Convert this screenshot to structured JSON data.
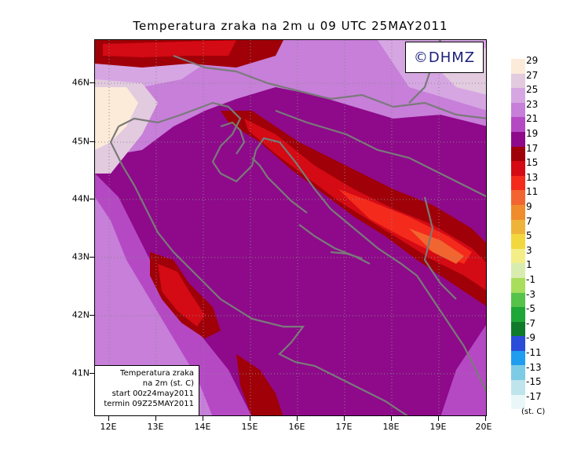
{
  "title": "Temperatura zraka na 2m u 09 UTC 25MAY2011",
  "watermark": "©DHMZ",
  "info_box": {
    "line1": "Temperatura zraka",
    "line2": "na 2m (st. C)",
    "line3": "start 00z24may2011",
    "line4": "termin 09Z25MAY2011"
  },
  "lat_labels": [
    "46N",
    "45N",
    "44N",
    "43N",
    "42N",
    "41N"
  ],
  "lon_labels": [
    "12E",
    "13E",
    "14E",
    "15E",
    "16E",
    "17E",
    "18E",
    "19E",
    "20E"
  ],
  "legend": {
    "labels": [
      "29",
      "27",
      "25",
      "23",
      "21",
      "19",
      "17",
      "15",
      "13",
      "11",
      "9",
      "7",
      "5",
      "3",
      "1",
      "-1",
      "-3",
      "-5",
      "-7",
      "-9",
      "-11",
      "-13",
      "-15",
      "-17"
    ],
    "colors": [
      "#fdebd9",
      "#e2cadf",
      "#d6a6e3",
      "#c77fd9",
      "#b549c4",
      "#8e0a8a",
      "#a00008",
      "#d40a14",
      "#f42a1c",
      "#f26530",
      "#ef8c2c",
      "#eeb43a",
      "#f2d83e",
      "#f4ee88",
      "#d8ecb0",
      "#a8de5c",
      "#56c24a",
      "#1fa638",
      "#0f7a2a",
      "#2a4cd8",
      "#1f9ef0",
      "#7ecbe6",
      "#bfe4ec",
      "#e9f7f8"
    ],
    "unit": "(st. C)"
  }
}
